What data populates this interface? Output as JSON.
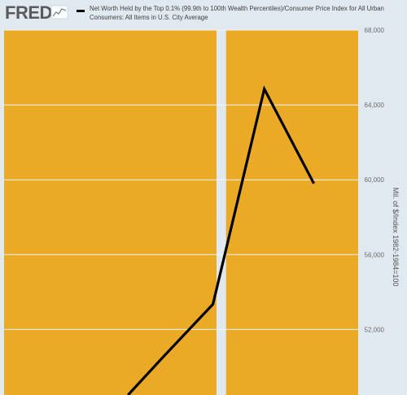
{
  "brand": {
    "logo_text": "FRED"
  },
  "colors": {
    "background": "#e1e9f0",
    "recession_band": "#ebaa25",
    "line": "#000000",
    "gridline": "#f4f4f4",
    "tick_text": "#6c6c6c"
  },
  "legend": {
    "label": "Net Worth Held by the Top 0.1% (99.9th to 100th Wealth Percentiles)/Consumer Price Index for All Urban Consumers: All Items in U.S. City Average"
  },
  "chart_data": {
    "type": "line",
    "title": "",
    "xlabel": "",
    "ylabel": "Mil. of $/Index 1982-1984=100",
    "ylim": [
      48500,
      68000
    ],
    "yticks": [
      52000,
      56000,
      60000,
      64000,
      68000
    ],
    "ytick_labels": [
      "52,000",
      "56,000",
      "60,000",
      "64,000",
      "68,000"
    ],
    "grid": true,
    "shaded_periods": [
      {
        "start": 0.0,
        "end": 0.6
      },
      {
        "start": 0.627,
        "end": 1.0
      }
    ],
    "series": [
      {
        "x": [
          0.35,
          0.45,
          0.59,
          0.735,
          0.875
        ],
        "values": [
          48500,
          50550,
          53350,
          64850,
          59800
        ]
      }
    ]
  }
}
